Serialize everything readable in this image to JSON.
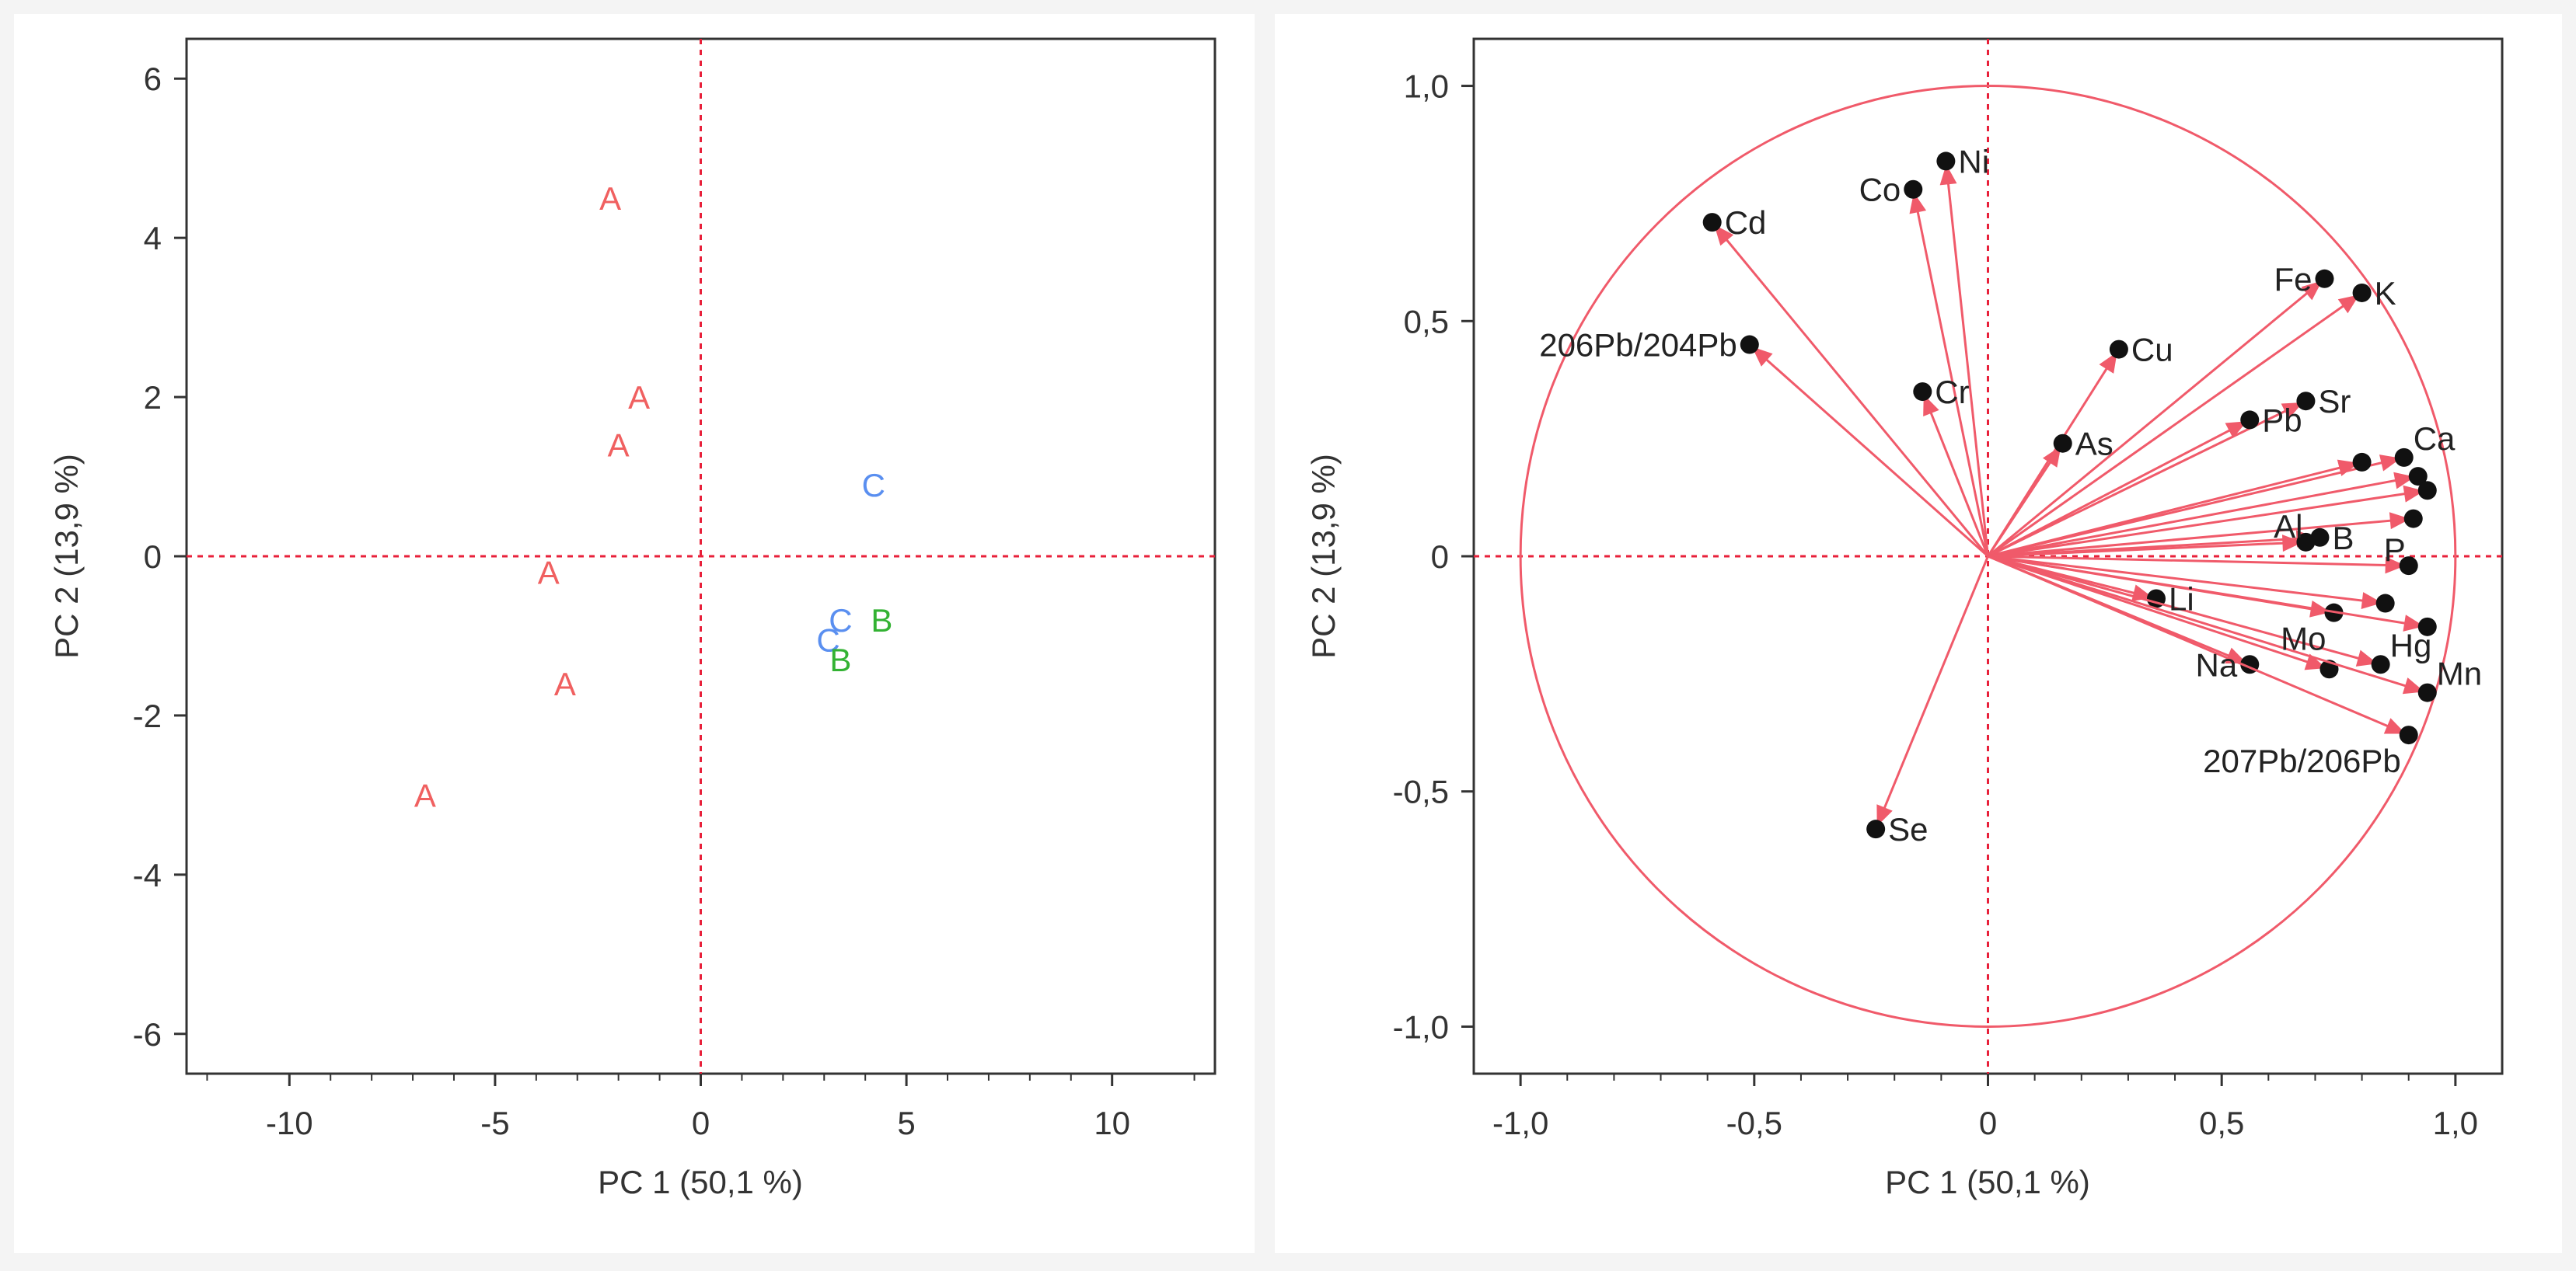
{
  "chart_data": [
    {
      "type": "scatter",
      "title": "",
      "xlabel": "PC 1 (50,1 %)",
      "ylabel": "PC 2  (13,9 %)",
      "xlim": [
        -12.5,
        12.5
      ],
      "ylim": [
        -6.5,
        6.5
      ],
      "x_ticks": [
        {
          "value": -10,
          "label": "-10"
        },
        {
          "value": -5,
          "label": "-5"
        },
        {
          "value": 0,
          "label": "0"
        },
        {
          "value": 5,
          "label": "5"
        },
        {
          "value": 10,
          "label": "10"
        }
      ],
      "y_ticks": [
        {
          "value": 6,
          "label": "6"
        },
        {
          "value": 4,
          "label": "4"
        },
        {
          "value": 2,
          "label": "2"
        },
        {
          "value": 0,
          "label": "0"
        },
        {
          "value": -2,
          "label": "-2"
        },
        {
          "value": -4,
          "label": "-4"
        },
        {
          "value": -6,
          "label": "-6"
        }
      ],
      "reference_lines": {
        "x": 0,
        "y": 0
      },
      "groups": [
        {
          "name": "A",
          "color": "#f06060"
        },
        {
          "name": "B",
          "color": "#33b233"
        },
        {
          "name": "C",
          "color": "#5a8ff0"
        }
      ],
      "points": [
        {
          "x": -2.2,
          "y": 4.5,
          "label": "A"
        },
        {
          "x": -1.5,
          "y": 2.0,
          "label": "A"
        },
        {
          "x": -2.0,
          "y": 1.4,
          "label": "A"
        },
        {
          "x": -3.7,
          "y": -0.2,
          "label": "A"
        },
        {
          "x": -3.3,
          "y": -1.6,
          "label": "A"
        },
        {
          "x": -6.7,
          "y": -3.0,
          "label": "A"
        },
        {
          "x": 4.2,
          "y": 0.9,
          "label": "C"
        },
        {
          "x": 3.4,
          "y": -0.8,
          "label": "C"
        },
        {
          "x": 3.1,
          "y": -1.05,
          "label": "C"
        },
        {
          "x": 4.4,
          "y": -0.8,
          "label": "B"
        },
        {
          "x": 3.4,
          "y": -1.3,
          "label": "B"
        }
      ]
    },
    {
      "type": "scatter",
      "title": "",
      "xlabel": "PC 1 (50,1 %)",
      "ylabel": "PC 2 (13,9 %)",
      "xlim": [
        -1.1,
        1.1
      ],
      "ylim": [
        -1.1,
        1.1
      ],
      "x_ticks": [
        {
          "value": -1.0,
          "label": "-1,0"
        },
        {
          "value": -0.5,
          "label": "-0,5"
        },
        {
          "value": 0,
          "label": "0"
        },
        {
          "value": 0.5,
          "label": "0,5"
        },
        {
          "value": 1.0,
          "label": "1,0"
        }
      ],
      "y_ticks": [
        {
          "value": 1.0,
          "label": "1,0"
        },
        {
          "value": 0.5,
          "label": "0,5"
        },
        {
          "value": 0,
          "label": "0"
        },
        {
          "value": -0.5,
          "label": "-0,5"
        },
        {
          "value": -1.0,
          "label": "-1,0"
        }
      ],
      "reference_lines": {
        "x": 0,
        "y": 0
      },
      "unit_circle": true,
      "color": "#f05a6a",
      "loadings": [
        {
          "x": -0.09,
          "y": 0.84,
          "label": "Ni",
          "pos": "right"
        },
        {
          "x": -0.16,
          "y": 0.78,
          "label": "Co",
          "pos": "left"
        },
        {
          "x": -0.59,
          "y": 0.71,
          "label": "Cd",
          "pos": "right"
        },
        {
          "x": -0.51,
          "y": 0.45,
          "label": "206Pb/204Pb",
          "pos": "left"
        },
        {
          "x": -0.14,
          "y": 0.35,
          "label": "Cr",
          "pos": "right"
        },
        {
          "x": 0.28,
          "y": 0.44,
          "label": "Cu",
          "pos": "right"
        },
        {
          "x": 0.16,
          "y": 0.24,
          "label": "As",
          "pos": "right"
        },
        {
          "x": 0.72,
          "y": 0.59,
          "label": "Fe",
          "pos": "left"
        },
        {
          "x": 0.8,
          "y": 0.56,
          "label": "K",
          "pos": "right"
        },
        {
          "x": 0.68,
          "y": 0.33,
          "label": "Sr",
          "pos": "right"
        },
        {
          "x": 0.56,
          "y": 0.29,
          "label": "Pb",
          "pos": "right"
        },
        {
          "x": 0.89,
          "y": 0.21,
          "label": "Ca",
          "pos": "upper-right"
        },
        {
          "x": 0.8,
          "y": 0.2,
          "label": "",
          "pos": "none"
        },
        {
          "x": 0.92,
          "y": 0.17,
          "label": "",
          "pos": "none"
        },
        {
          "x": 0.94,
          "y": 0.14,
          "label": "",
          "pos": "none"
        },
        {
          "x": 0.91,
          "y": 0.08,
          "label": "",
          "pos": "none"
        },
        {
          "x": 0.71,
          "y": 0.04,
          "label": "B",
          "pos": "right"
        },
        {
          "x": 0.68,
          "y": 0.03,
          "label": "Al",
          "pos": "upper-left"
        },
        {
          "x": 0.9,
          "y": -0.02,
          "label": "P",
          "pos": "upper-left"
        },
        {
          "x": 0.36,
          "y": -0.09,
          "label": "Li",
          "pos": "right"
        },
        {
          "x": 0.74,
          "y": -0.12,
          "label": "Mo",
          "pos": "lower-left"
        },
        {
          "x": 0.85,
          "y": -0.1,
          "label": "",
          "pos": "none"
        },
        {
          "x": 0.94,
          "y": -0.15,
          "label": "",
          "pos": "none"
        },
        {
          "x": 0.84,
          "y": -0.23,
          "label": "Hg",
          "pos": "upper-right"
        },
        {
          "x": 0.56,
          "y": -0.23,
          "label": "Na",
          "pos": "left"
        },
        {
          "x": 0.73,
          "y": -0.24,
          "label": "",
          "pos": "none"
        },
        {
          "x": 0.94,
          "y": -0.29,
          "label": "Mn",
          "pos": "upper-right"
        },
        {
          "x": 0.9,
          "y": -0.38,
          "label": "207Pb/206Pb",
          "pos": "lower-left"
        },
        {
          "x": -0.24,
          "y": -0.58,
          "label": "Se",
          "pos": "right"
        }
      ]
    }
  ]
}
